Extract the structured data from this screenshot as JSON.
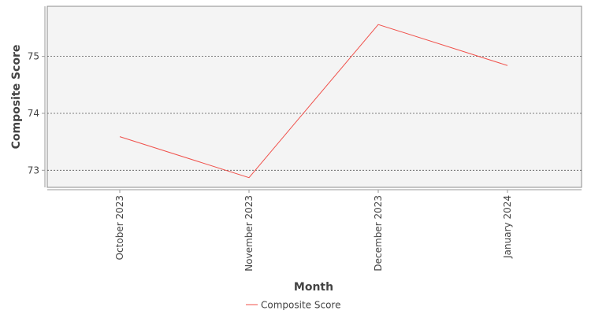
{
  "chart_data": {
    "type": "line",
    "xlabel": "Month",
    "ylabel": "Composite Score",
    "categories": [
      "October 2023",
      "November 2023",
      "December 2023",
      "January 2024"
    ],
    "series": [
      {
        "name": "Composite Score",
        "values": [
          73.59,
          72.87,
          75.56,
          74.84
        ],
        "color": "#f0504a"
      }
    ],
    "ylim": [
      72.7,
      75.88
    ],
    "yticks": [
      73,
      74,
      75
    ],
    "grid": true,
    "legend": "bottom-center",
    "plot_background": "#f4f4f4"
  }
}
